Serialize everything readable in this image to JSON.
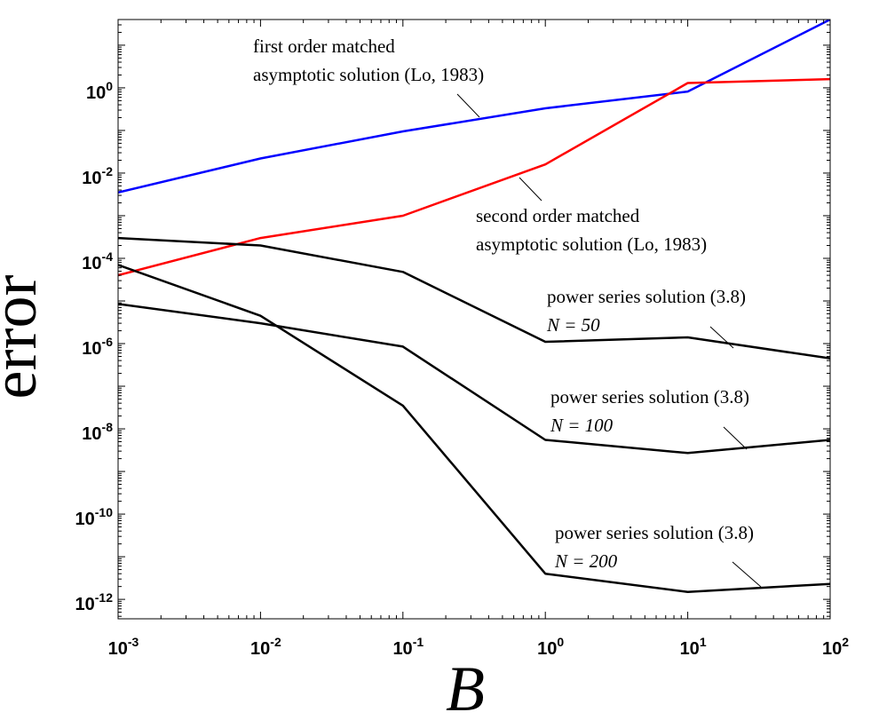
{
  "chart_data": {
    "type": "line",
    "title": "",
    "xlabel": "B",
    "ylabel": "error",
    "xscale": "log",
    "yscale": "log",
    "x": [
      0.001,
      0.01,
      0.1,
      1,
      10,
      100
    ],
    "xlim": [
      0.001,
      100
    ],
    "ylim": [
      3.5e-13,
      40.0
    ],
    "x_ticks": [
      {
        "base": "10",
        "exp": "-3"
      },
      {
        "base": "10",
        "exp": "-2"
      },
      {
        "base": "10",
        "exp": "-1"
      },
      {
        "base": "10",
        "exp": "0"
      },
      {
        "base": "10",
        "exp": "1"
      },
      {
        "base": "10",
        "exp": "2"
      }
    ],
    "y_ticks": [
      {
        "base": "10",
        "exp": "-12"
      },
      {
        "base": "10",
        "exp": "-10"
      },
      {
        "base": "10",
        "exp": "-8"
      },
      {
        "base": "10",
        "exp": "-6"
      },
      {
        "base": "10",
        "exp": "-4"
      },
      {
        "base": "10",
        "exp": "-2"
      },
      {
        "base": "10",
        "exp": "0"
      }
    ],
    "series": [
      {
        "name": "first order matched asymptotic solution (Lo, 1983)",
        "color": "#0000ff",
        "values": [
          0.0035,
          0.022,
          0.095,
          0.33,
          0.82,
          40
        ]
      },
      {
        "name": "second order matched asymptotic solution (Lo, 1983)",
        "color": "#ff0000",
        "values": [
          4e-05,
          0.0003,
          0.001,
          0.016,
          1.3,
          1.6
        ]
      },
      {
        "name": "power series solution (3.8) N = 50",
        "color": "#000000",
        "values": [
          0.0003,
          0.0002,
          4.8e-05,
          1.1e-06,
          1.4e-06,
          4.5e-07
        ]
      },
      {
        "name": "power series solution (3.8) N = 100",
        "color": "#000000",
        "values": [
          8.5e-06,
          3e-06,
          8.5e-07,
          5.5e-09,
          2.7e-09,
          5.5e-09
        ]
      },
      {
        "name": "power series solution (3.8) N = 200",
        "color": "#000000",
        "values": [
          7e-05,
          4.5e-06,
          3.5e-08,
          4e-12,
          1.5e-12,
          2.3e-12
        ]
      }
    ],
    "annotations": [
      {
        "lines": [
          "first order matched",
          "asymptotic solution (Lo, 1983)"
        ],
        "series": 0
      },
      {
        "lines": [
          "second order matched",
          "asymptotic solution (Lo, 1983)"
        ],
        "series": 1
      },
      {
        "lines": [
          "power series solution (3.8)",
          "N = 50"
        ],
        "series": 2
      },
      {
        "lines": [
          "power series solution (3.8)",
          "N = 100"
        ],
        "series": 3
      },
      {
        "lines": [
          "power series solution (3.8)",
          "N = 200"
        ],
        "series": 4
      }
    ]
  }
}
